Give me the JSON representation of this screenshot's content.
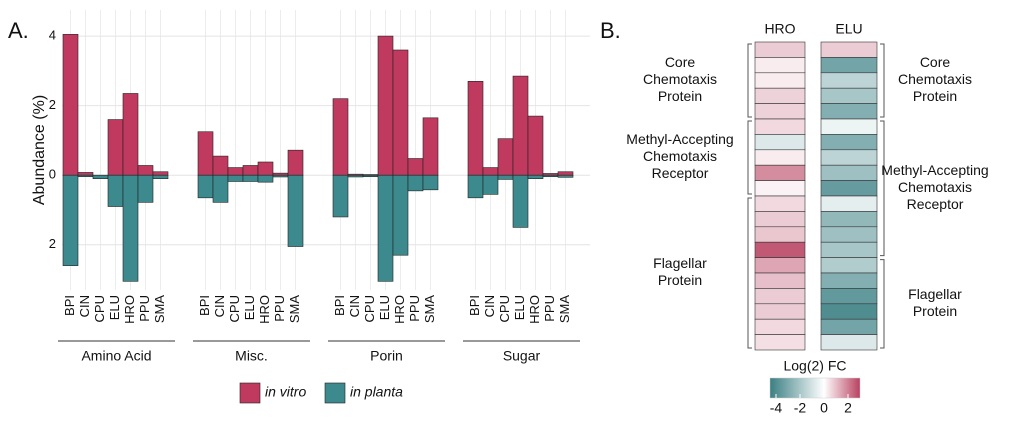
{
  "chart_data": [
    {
      "type": "bar",
      "panel_label": "A.",
      "ylabel": "Abundance (%)",
      "groups": [
        "Amino Acid",
        "Misc.",
        "Porin",
        "Sugar"
      ],
      "categories": [
        "BPI",
        "CIN",
        "CPU",
        "ELU",
        "HRO",
        "PPU",
        "SMA",
        "BPI",
        "CIN",
        "CPU",
        "ELU",
        "HRO",
        "PPU",
        "SMA",
        "BPI",
        "CIN",
        "CPU",
        "ELU",
        "HRO",
        "PPU",
        "SMA",
        "BPI",
        "CIN",
        "CPU",
        "ELU",
        "HRO",
        "PPU",
        "SMA"
      ],
      "series": [
        {
          "name": "in vitro",
          "color": "#c0395f",
          "values": [
            4.05,
            0.08,
            -0.05,
            1.6,
            2.35,
            0.28,
            0.1,
            1.25,
            0.55,
            0.22,
            0.28,
            0.38,
            0.06,
            0.72,
            2.2,
            0.03,
            0.02,
            4.0,
            3.6,
            0.48,
            1.65,
            2.7,
            0.22,
            1.05,
            2.85,
            1.7,
            0.05,
            0.1
          ]
        },
        {
          "name": "in planta",
          "color": "#3c8a8e",
          "values": [
            -2.6,
            -0.02,
            -0.1,
            -0.9,
            -3.05,
            -0.78,
            -0.1,
            -0.65,
            -0.78,
            -0.18,
            -0.18,
            -0.2,
            -0.05,
            -2.05,
            -1.2,
            -0.05,
            -0.02,
            -3.05,
            -2.3,
            -0.45,
            -0.42,
            -0.65,
            -0.55,
            -0.12,
            -1.5,
            -0.1,
            -0.04,
            -0.06
          ]
        }
      ],
      "ylim": [
        -3.3,
        4.75
      ],
      "yticks": [
        {
          "value": -2,
          "label": "2"
        },
        0,
        2,
        4
      ],
      "grid": true
    },
    {
      "type": "heatmap",
      "panel_label": "B.",
      "columns": [
        {
          "name": "HRO",
          "groups": [
            {
              "lines": [
                "Core",
                "Chemotaxis",
                "Protein"
              ],
              "values": [
                0.8,
                0.3,
                0.3,
                0.7,
                0.7
              ]
            },
            {
              "lines": [
                "Methyl-Accepting",
                "Chemotaxis",
                "Receptor"
              ],
              "values": [
                0.6,
                -0.8,
                0.3,
                1.8,
                0.2
              ]
            },
            {
              "lines": [
                "Flagellar",
                "Protein"
              ],
              "values": [
                0.6,
                0.8,
                0.9,
                2.6,
                1.4,
                1.0,
                0.8,
                0.8,
                0.6,
                0.5
              ]
            }
          ]
        },
        {
          "name": "ELU",
          "groups": [
            {
              "lines": [
                "Core",
                "Chemotaxis",
                "Protein"
              ],
              "values": [
                0.8,
                -3.2,
                -1.5,
                -2.0,
                -2.8
              ]
            },
            {
              "lines": [
                "Methyl-Accepting",
                "Chemotaxis",
                "Receptor"
              ],
              "values": [
                -0.4,
                -2.8,
                -1.5,
                -2.2,
                -3.5,
                -0.6,
                -2.5,
                -2.2,
                -2.0
              ]
            },
            {
              "lines": [
                "Flagellar",
                "Protein"
              ],
              "values": [
                -1.8,
                -2.8,
                -3.6,
                -4.0,
                -3.2,
                -0.8
              ]
            }
          ]
        }
      ],
      "colorbar_title": "Log(2) FC",
      "clim": [
        -4.5,
        3
      ],
      "cmid": 0,
      "colors": [
        "#3a7f83",
        "#ffffff",
        "#b8405f"
      ],
      "cticks": [
        -4,
        -2,
        0,
        2
      ]
    }
  ]
}
